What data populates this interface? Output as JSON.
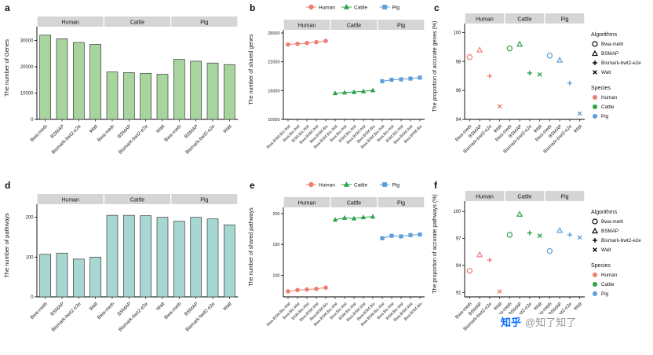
{
  "figure": {
    "watermark_brand": "知乎",
    "watermark_user": "@知了知了"
  },
  "colors": {
    "human": "#EE7E72",
    "cattle": "#2DA24C",
    "pig": "#5E9FD8",
    "bar_green": "#A8D49E",
    "bar_teal": "#A6D7D1",
    "strip": "#D5D5D5"
  },
  "chart_data": [
    {
      "id": "a",
      "panel_label": "a",
      "type": "bar",
      "title": "",
      "ylabel": "The number of Genes",
      "xlabel": "",
      "facets": [
        "Human",
        "Cattle",
        "Pig"
      ],
      "categories": [
        "Bwa-meth",
        "BSMAP",
        "Bismark-bwt2-e2e",
        "Walt"
      ],
      "values": {
        "Human": [
          32000,
          30600,
          29200,
          28500
        ],
        "Cattle": [
          18000,
          17750,
          17500,
          17150
        ],
        "Pig": [
          22800,
          22100,
          21400,
          20800
        ]
      },
      "yticks": [
        0,
        10000,
        20000,
        30000
      ],
      "ylim": [
        0,
        34000
      ],
      "color_key": "bar_green",
      "grid": "off"
    },
    {
      "id": "b",
      "panel_label": "b",
      "type": "pointline",
      "title": "",
      "ylabel": "The number of shared genes",
      "xlabel": "",
      "facets": [
        "Human",
        "Cattle",
        "Pig"
      ],
      "categories": [
        "Bwa.BSM.Bis.Wal",
        "Bwa.Bis.Wal",
        "BSM.Bis.Wal",
        "Bwa.BSM.Wal",
        "Bwa.BSM.Bis"
      ],
      "values": {
        "Human": [
          25600,
          25750,
          25900,
          26100,
          26350
        ],
        "Cattle": [
          15450,
          15600,
          15700,
          15850,
          16050
        ],
        "Pig": [
          17950,
          18250,
          18350,
          18500,
          18700
        ]
      },
      "yticks": [
        10000,
        16000,
        22000,
        28000
      ],
      "ylim": [
        10000,
        28000
      ],
      "legend_position": "top",
      "legend": [
        {
          "label": "Human",
          "shape": "circle",
          "color_key": "human"
        },
        {
          "label": "Cattle",
          "shape": "triangle",
          "color_key": "cattle"
        },
        {
          "label": "Pig",
          "shape": "square",
          "color_key": "pig"
        }
      ],
      "grid": "off"
    },
    {
      "id": "c",
      "panel_label": "c",
      "type": "scatter",
      "title": "",
      "ylabel": "The proportion of accurate genes (%)",
      "xlabel": "",
      "facets": [
        "Human",
        "Cattle",
        "Pig"
      ],
      "categories": [
        "Bwa-meth",
        "BSMAP",
        "Bismark-bwt2-e2e",
        "Walt"
      ],
      "shapes": [
        "circle",
        "triangle",
        "plus",
        "x"
      ],
      "values": {
        "Human": [
          98.3,
          98.8,
          97.0,
          94.9
        ],
        "Cattle": [
          98.9,
          99.2,
          97.2,
          97.1
        ],
        "Pig": [
          98.4,
          98.1,
          96.5,
          94.4
        ]
      },
      "yticks": [
        94,
        96,
        98,
        100
      ],
      "ylim": [
        94,
        100.4
      ],
      "legend_position": "right",
      "legend_algorithms": {
        "title": "Algorithms",
        "items": [
          {
            "label": "Bwa-meth",
            "shape": "circle"
          },
          {
            "label": "BSMAP",
            "shape": "triangle"
          },
          {
            "label": "Bismark-bwt2-e2e",
            "shape": "plus"
          },
          {
            "label": "Walt",
            "shape": "x"
          }
        ]
      },
      "legend_species": {
        "title": "Species",
        "items": [
          {
            "label": "Human",
            "color_key": "human"
          },
          {
            "label": "Cattle",
            "color_key": "cattle"
          },
          {
            "label": "Pig",
            "color_key": "pig"
          }
        ]
      },
      "grid": "off"
    },
    {
      "id": "d",
      "panel_label": "d",
      "type": "bar",
      "title": "",
      "ylabel": "The number of pathways",
      "xlabel": "",
      "facets": [
        "Human",
        "Cattle",
        "Pig"
      ],
      "categories": [
        "Bwa-meth",
        "BSMAP",
        "Bismark-bwt2-e2e",
        "Walt"
      ],
      "values": {
        "Human": [
          107,
          110,
          95,
          100
        ],
        "Cattle": [
          205,
          205,
          204,
          200
        ],
        "Pig": [
          190,
          200,
          196,
          181
        ]
      },
      "yticks": [
        0,
        100,
        200
      ],
      "ylim": [
        0,
        225
      ],
      "color_key": "bar_teal",
      "grid": "off"
    },
    {
      "id": "e",
      "panel_label": "e",
      "type": "pointline",
      "title": "",
      "ylabel": "The number of shared pathways",
      "xlabel": "",
      "facets": [
        "Human",
        "Cattle",
        "Pig"
      ],
      "categories": [
        "Bwa.BSM.Bis.Wal",
        "Bwa.Bis.Wal",
        "BSM.Bis.Wal",
        "Bwa.BSM.Wal",
        "Bwa.BSM.Bis"
      ],
      "values": {
        "Human": [
          74,
          76,
          77,
          78,
          80
        ],
        "Cattle": [
          190,
          193,
          192,
          194,
          195
        ],
        "Pig": [
          160,
          164,
          163,
          165,
          166
        ]
      },
      "yticks": [
        100,
        150,
        200
      ],
      "ylim": [
        65,
        205
      ],
      "legend_position": "top",
      "legend": [
        {
          "label": "Human",
          "shape": "circle",
          "color_key": "human"
        },
        {
          "label": "Cattle",
          "shape": "triangle",
          "color_key": "cattle"
        },
        {
          "label": "Pig",
          "shape": "square",
          "color_key": "pig"
        }
      ],
      "grid": "off"
    },
    {
      "id": "f",
      "panel_label": "f",
      "type": "scatter",
      "title": "",
      "ylabel": "The proportion of accurate pathways (%)",
      "xlabel": "",
      "facets": [
        "Human",
        "Cattle",
        "Pig"
      ],
      "categories": [
        "Bwa-meth",
        "BSMAP",
        "Bismark-bwt2-e2e",
        "Walt"
      ],
      "shapes": [
        "circle",
        "triangle",
        "plus",
        "x"
      ],
      "values": {
        "Human": [
          93.4,
          95.2,
          94.6,
          91.1
        ],
        "Cattle": [
          97.4,
          99.7,
          97.6,
          97.3
        ],
        "Pig": [
          95.6,
          97.9,
          97.4,
          97.1
        ]
      },
      "yticks": [
        91,
        94,
        97,
        100
      ],
      "ylim": [
        90.5,
        100.8
      ],
      "legend_position": "right",
      "legend_algorithms": {
        "title": "Algorithms",
        "items": [
          {
            "label": "Bwa-meth",
            "shape": "circle"
          },
          {
            "label": "BSMAP",
            "shape": "triangle"
          },
          {
            "label": "Bismark-bwt2-e2e",
            "shape": "plus"
          },
          {
            "label": "Walt",
            "shape": "x"
          }
        ]
      },
      "legend_species": {
        "title": "Species",
        "items": [
          {
            "label": "Human",
            "color_key": "human"
          },
          {
            "label": "Cattle",
            "color_key": "cattle"
          },
          {
            "label": "Pig",
            "color_key": "pig"
          }
        ]
      },
      "grid": "off"
    }
  ]
}
